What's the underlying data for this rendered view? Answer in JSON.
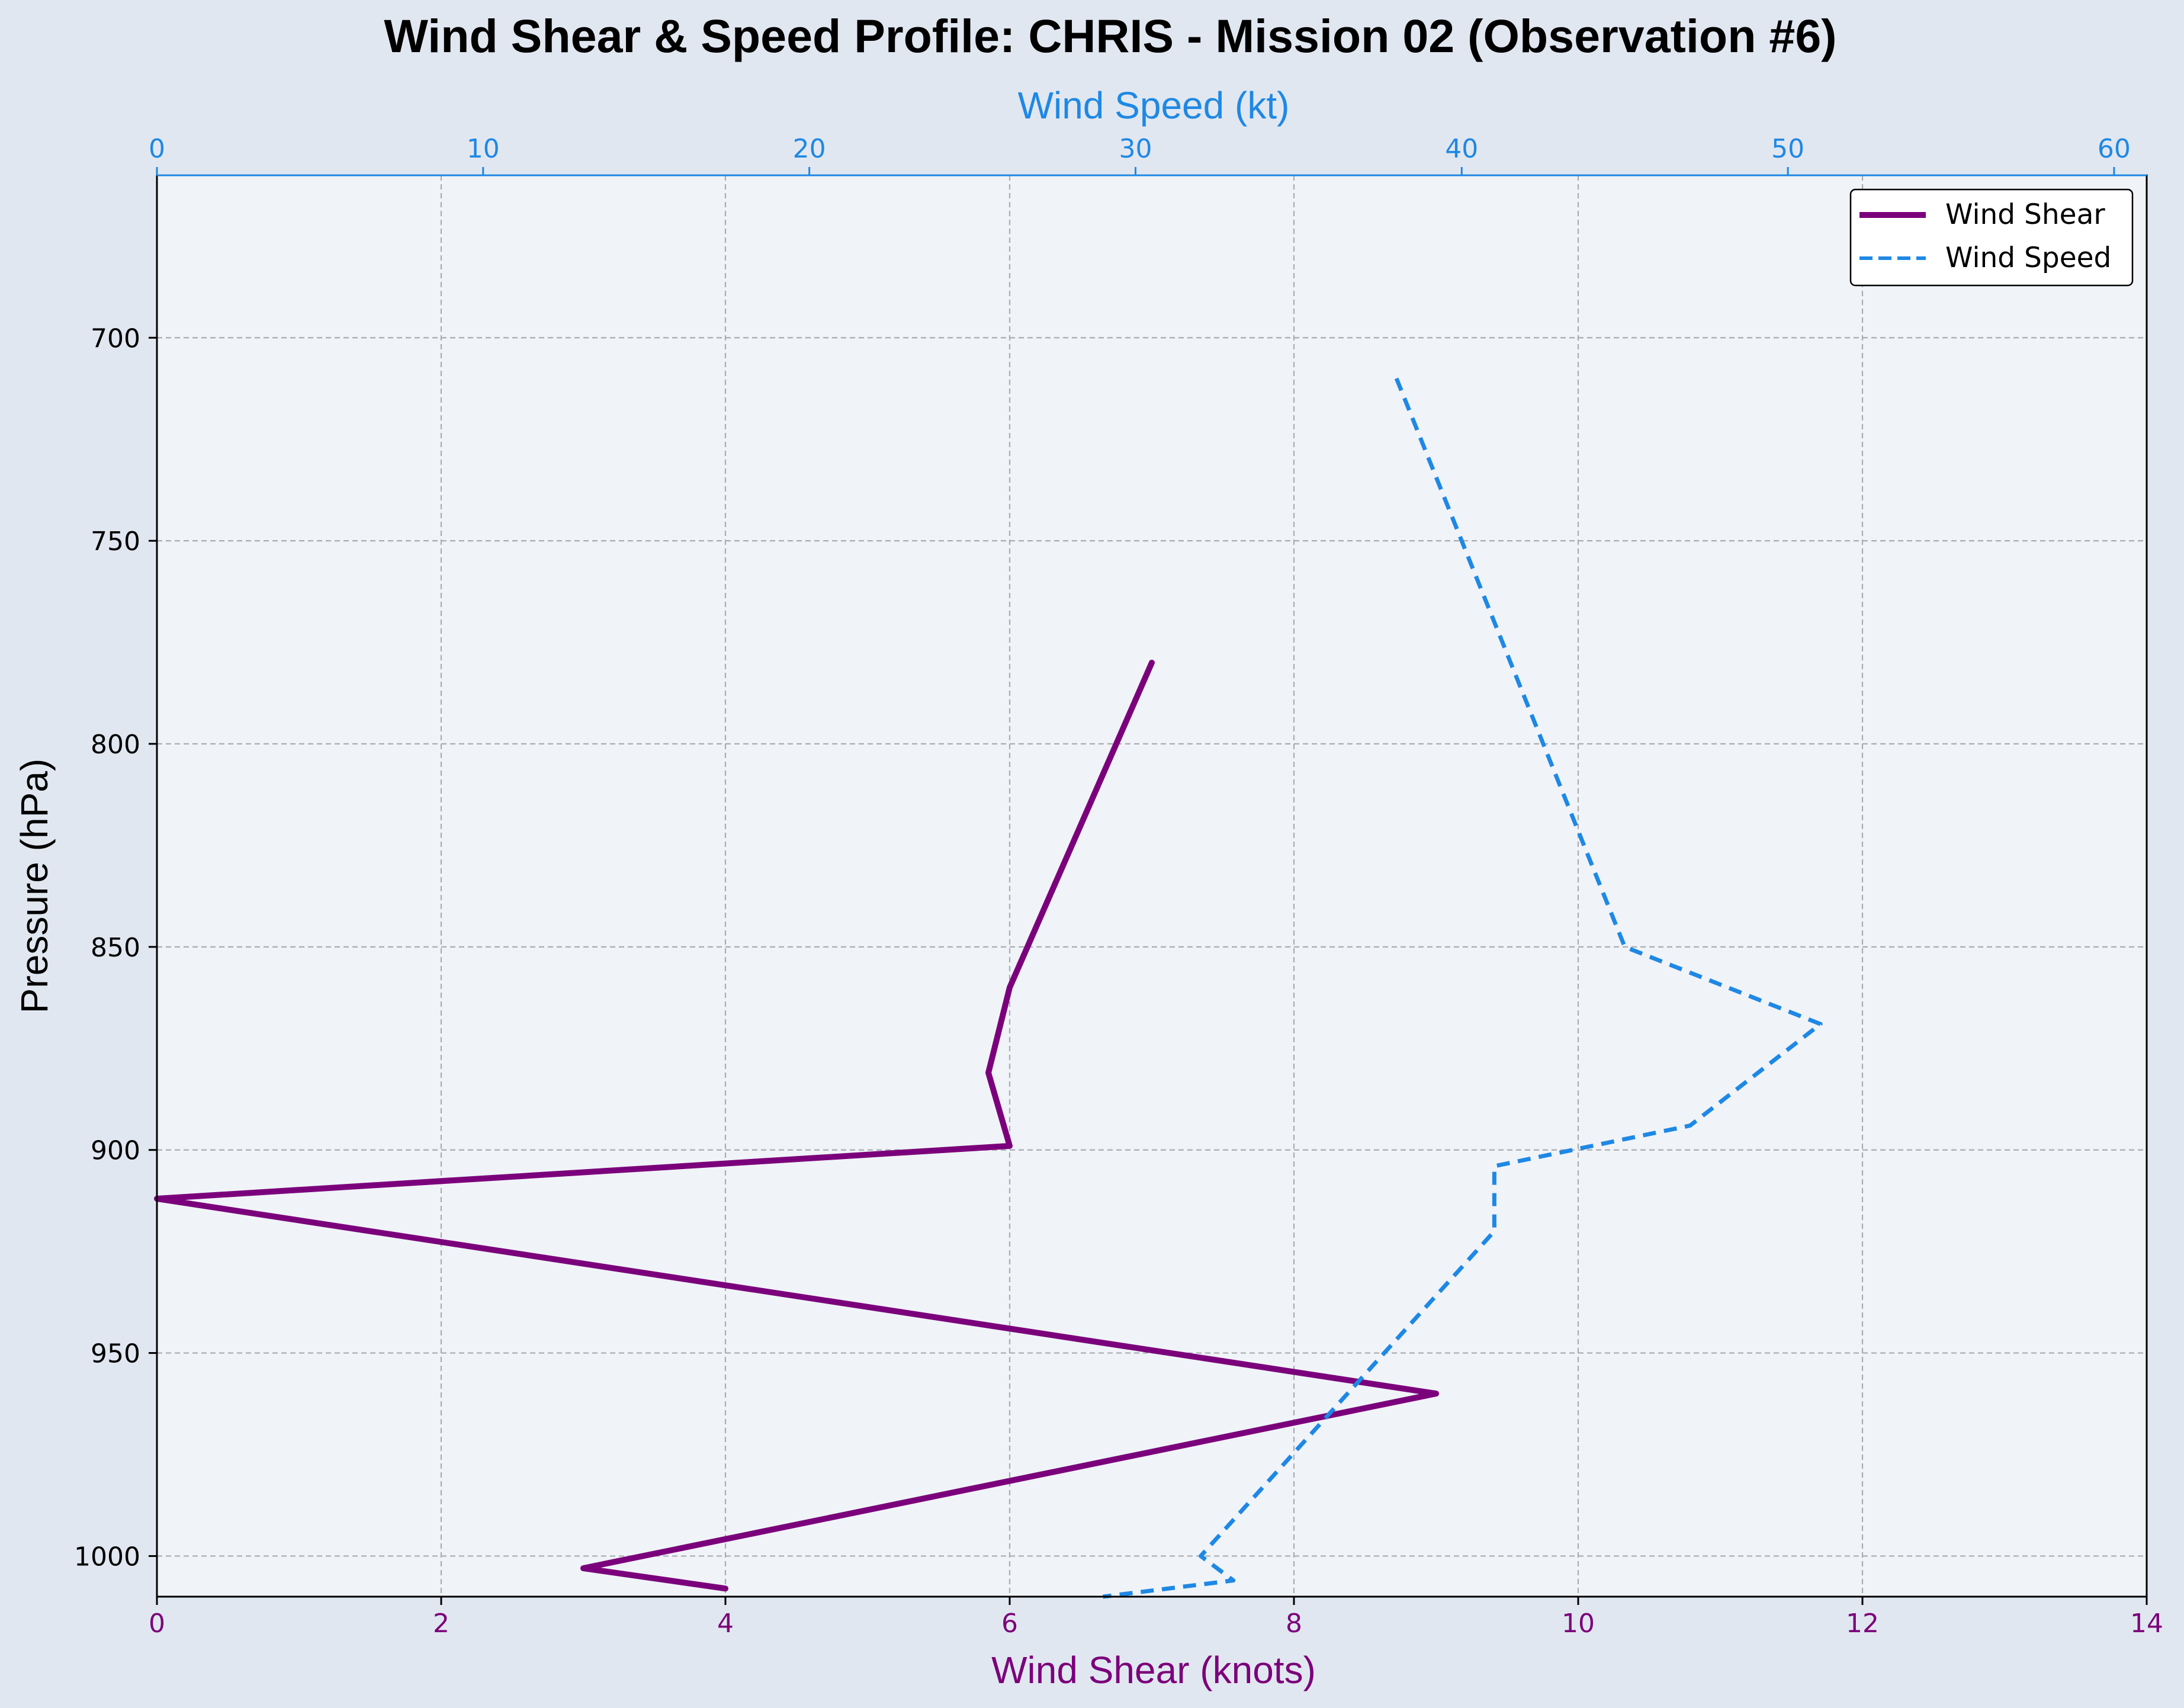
{
  "colors": {
    "figure_background": "#e1e7f0",
    "plot_background": "#f0f3f8",
    "shear": "#7b007b",
    "speed": "#1e88e5",
    "grid": "#a9acb0"
  },
  "chart_data": {
    "type": "line",
    "title": "Wind Shear & Speed Profile: CHRIS - Mission 02 (Observation #6)",
    "ylabel": "Pressure (hPa)",
    "xlabel_bottom": "Wind Shear (knots)",
    "xlabel_top": "Wind Speed (kt)",
    "ylim": [
      1010,
      660
    ],
    "y_inverted": true,
    "xlim_bottom": [
      0,
      14
    ],
    "xlim_top": [
      0,
      61
    ],
    "yticks": [
      "700",
      "750",
      "800",
      "850",
      "900",
      "950",
      "1000"
    ],
    "xticks_bottom": [
      "0",
      "2",
      "4",
      "6",
      "8",
      "10",
      "12",
      "14"
    ],
    "xticks_top": [
      "0",
      "10",
      "20",
      "30",
      "40",
      "50",
      "60"
    ],
    "grid": true,
    "legend_position": "top-right",
    "series": [
      {
        "name": "Wind Shear",
        "axis": "bottom",
        "style": "solid",
        "points": [
          {
            "x": 7.0,
            "y": 780
          },
          {
            "x": 6.0,
            "y": 860
          },
          {
            "x": 5.85,
            "y": 881
          },
          {
            "x": 6.0,
            "y": 899
          },
          {
            "x": 0.0,
            "y": 912
          },
          {
            "x": 9.0,
            "y": 960
          },
          {
            "x": 3.0,
            "y": 1003
          },
          {
            "x": 4.0,
            "y": 1008
          }
        ]
      },
      {
        "name": "Wind Speed",
        "axis": "top",
        "style": "dashed",
        "points": [
          {
            "x": 38.0,
            "y": 710
          },
          {
            "x": 45.0,
            "y": 850
          },
          {
            "x": 51.0,
            "y": 869
          },
          {
            "x": 47.0,
            "y": 894
          },
          {
            "x": 41.0,
            "y": 904
          },
          {
            "x": 41.0,
            "y": 920
          },
          {
            "x": 32.0,
            "y": 1000
          },
          {
            "x": 33.0,
            "y": 1006
          },
          {
            "x": 29.0,
            "y": 1010
          }
        ]
      }
    ]
  }
}
